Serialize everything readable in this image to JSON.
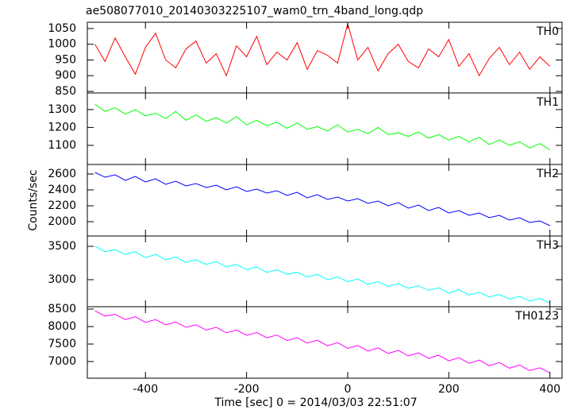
{
  "chart_data": {
    "type": "line",
    "title": "ae508077010_20140303225107_wam0_trn_4band_long.qdp",
    "x_label": "Time [sec] 0 = 2014/03/03 22:51:07",
    "y_label": "Counts/sec",
    "xlim": [
      -515,
      424
    ],
    "xticks": [
      -400,
      -200,
      0,
      200,
      400
    ],
    "x": [
      -500,
      -480,
      -460,
      -440,
      -420,
      -400,
      -380,
      -360,
      -340,
      -320,
      -300,
      -280,
      -260,
      -240,
      -220,
      -200,
      -180,
      -160,
      -140,
      -120,
      -100,
      -80,
      -60,
      -40,
      -20,
      0,
      20,
      40,
      60,
      80,
      100,
      120,
      140,
      160,
      180,
      200,
      220,
      240,
      260,
      280,
      300,
      320,
      340,
      360,
      380,
      400
    ],
    "series": [
      {
        "name": "TH0",
        "color": "#ff0000",
        "ylim": [
          845,
          1070
        ],
        "yticks": [
          850,
          900,
          950,
          1000,
          1050
        ],
        "values": [
          1000,
          945,
          1020,
          960,
          905,
          990,
          1035,
          950,
          925,
          985,
          1010,
          940,
          970,
          900,
          995,
          960,
          1025,
          935,
          975,
          950,
          1005,
          920,
          980,
          965,
          940,
          1065,
          950,
          990,
          915,
          970,
          1000,
          945,
          925,
          985,
          960,
          1015,
          930,
          970,
          900,
          955,
          990,
          935,
          975,
          920,
          960,
          930
        ]
      },
      {
        "name": "TH1",
        "color": "#00ff00",
        "ylim": [
          993,
          1393
        ],
        "yticks": [
          1100,
          1200,
          1300
        ],
        "values": [
          1330,
          1290,
          1310,
          1275,
          1300,
          1265,
          1280,
          1250,
          1290,
          1240,
          1270,
          1235,
          1255,
          1225,
          1260,
          1215,
          1240,
          1210,
          1230,
          1195,
          1225,
          1190,
          1205,
          1180,
          1215,
          1175,
          1190,
          1165,
          1200,
          1160,
          1170,
          1150,
          1175,
          1140,
          1160,
          1130,
          1150,
          1120,
          1145,
          1105,
          1130,
          1100,
          1120,
          1085,
          1110,
          1075
        ]
      },
      {
        "name": "TH2",
        "color": "#0000ff",
        "ylim": [
          1820,
          2720
        ],
        "yticks": [
          2000,
          2200,
          2400,
          2600
        ],
        "values": [
          2620,
          2560,
          2590,
          2520,
          2570,
          2500,
          2540,
          2470,
          2510,
          2450,
          2480,
          2430,
          2460,
          2400,
          2440,
          2380,
          2410,
          2360,
          2390,
          2330,
          2370,
          2300,
          2340,
          2280,
          2310,
          2260,
          2290,
          2230,
          2260,
          2200,
          2240,
          2170,
          2210,
          2140,
          2180,
          2110,
          2140,
          2080,
          2110,
          2050,
          2080,
          2020,
          2050,
          1990,
          2010,
          1950
        ]
      },
      {
        "name": "TH3",
        "color": "#00ffff",
        "ylim": [
          2595,
          3655
        ],
        "yticks": [
          3000,
          3500
        ],
        "values": [
          3500,
          3420,
          3450,
          3380,
          3420,
          3330,
          3380,
          3300,
          3340,
          3260,
          3300,
          3230,
          3270,
          3190,
          3230,
          3150,
          3190,
          3110,
          3150,
          3080,
          3110,
          3040,
          3080,
          3000,
          3040,
          2970,
          3010,
          2930,
          2970,
          2900,
          2940,
          2870,
          2910,
          2840,
          2880,
          2800,
          2850,
          2770,
          2810,
          2740,
          2780,
          2710,
          2750,
          2680,
          2720,
          2650
        ]
      },
      {
        "name": "TH0123",
        "color": "#ff00ff",
        "ylim": [
          6523,
          8568
        ],
        "yticks": [
          7000,
          7500,
          8000,
          8500
        ],
        "values": [
          8450,
          8300,
          8350,
          8200,
          8280,
          8120,
          8200,
          8050,
          8130,
          7980,
          8050,
          7900,
          7980,
          7820,
          7900,
          7750,
          7830,
          7680,
          7760,
          7600,
          7680,
          7530,
          7610,
          7450,
          7540,
          7380,
          7460,
          7300,
          7390,
          7230,
          7320,
          7160,
          7250,
          7090,
          7180,
          7020,
          7110,
          6950,
          7040,
          6880,
          6970,
          6810,
          6900,
          6740,
          6820,
          6680
        ]
      }
    ]
  }
}
